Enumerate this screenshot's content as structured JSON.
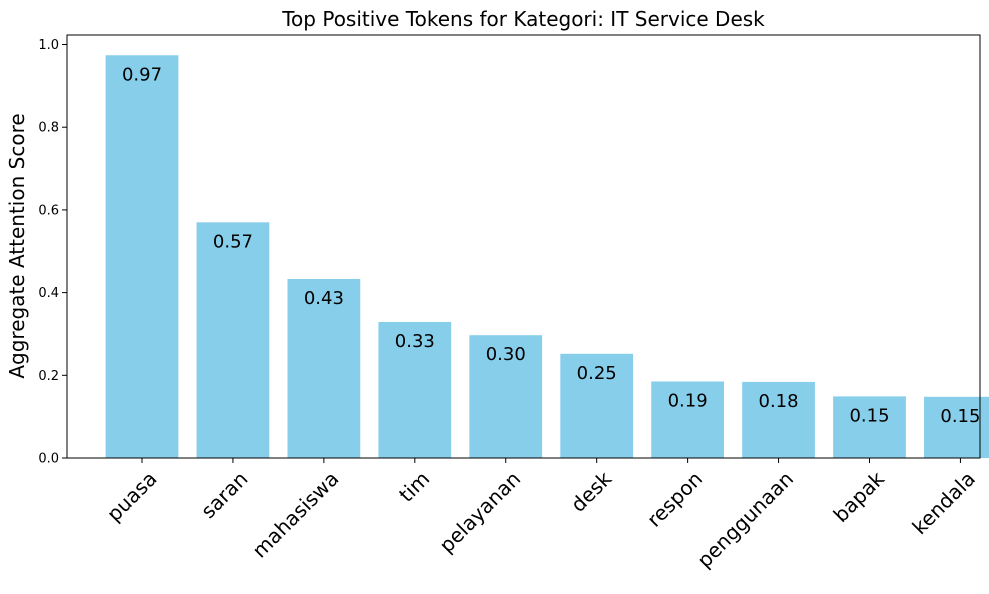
{
  "chart_data": {
    "type": "bar",
    "title": "Top Positive Tokens for Kategori: IT Service Desk",
    "xlabel": "",
    "ylabel": "Aggregate Attention Score",
    "categories": [
      "puasa",
      "saran",
      "mahasiswa",
      "tim",
      "pelayanan",
      "desk",
      "respon",
      "penggunaan",
      "bapak",
      "kendala"
    ],
    "values": [
      0.974,
      0.57,
      0.433,
      0.329,
      0.297,
      0.252,
      0.185,
      0.184,
      0.149,
      0.148
    ],
    "value_labels": [
      "0.97",
      "0.57",
      "0.43",
      "0.33",
      "0.30",
      "0.25",
      "0.19",
      "0.18",
      "0.15",
      "0.15"
    ],
    "ylim": [
      0,
      1.023
    ],
    "yticks": [
      "0.0",
      "0.2",
      "0.4",
      "0.6",
      "0.8",
      "1.0"
    ],
    "grid": false,
    "legend": "none",
    "bar_color": "#87ceeb"
  }
}
